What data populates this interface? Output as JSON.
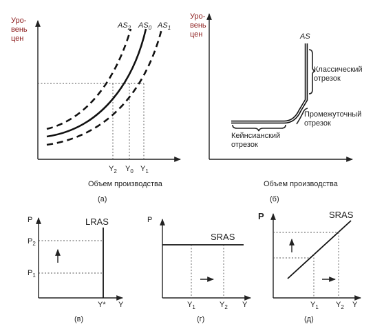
{
  "colors": {
    "ink": "#222222",
    "axis_label": "#8b1a1a"
  },
  "panel_a": {
    "ylabel_line1": "Уро-",
    "ylabel_line2": "вень",
    "ylabel_line3": "цен",
    "curve_as2": "AS",
    "curve_as2_sub": "2",
    "curve_as0": "AS",
    "curve_as0_sub": "0",
    "curve_as1": "AS",
    "curve_as1_sub": "1",
    "tick_y2": "Y",
    "tick_y2_sub": "2",
    "tick_y0": "Y",
    "tick_y0_sub": "0",
    "tick_y1": "Y",
    "tick_y1_sub": "1",
    "xlabel": "Объем производства",
    "caption": "(а)"
  },
  "panel_b": {
    "ylabel_line1": "Уро-",
    "ylabel_line2": "вень",
    "ylabel_line3": "цен",
    "curve": "AS",
    "seg_classic_1": "Классический",
    "seg_classic_2": "отрезок",
    "seg_mid_1": "Промежуточный",
    "seg_mid_2": "отрезок",
    "seg_keynes_1": "Кейнсианский",
    "seg_keynes_2": "отрезок",
    "xlabel": "Объем производства",
    "caption": "(б)"
  },
  "panel_v": {
    "y_axis": "P",
    "x_axis": "Y",
    "curve": "LRAS",
    "p2": "P",
    "p2_sub": "2",
    "p1": "P",
    "p1_sub": "1",
    "ystar": "Y*",
    "caption": "(в)"
  },
  "panel_g": {
    "y_axis": "P",
    "x_axis": "Y",
    "curve": "SRAS",
    "y1": "Y",
    "y1_sub": "1",
    "y2": "Y",
    "y2_sub": "2",
    "caption": "(г)"
  },
  "panel_d": {
    "y_axis": "P",
    "x_axis": "Y",
    "curve": "SRAS",
    "y1": "Y",
    "y1_sub": "1",
    "y2": "Y",
    "y2_sub": "2",
    "caption": "(д)"
  }
}
